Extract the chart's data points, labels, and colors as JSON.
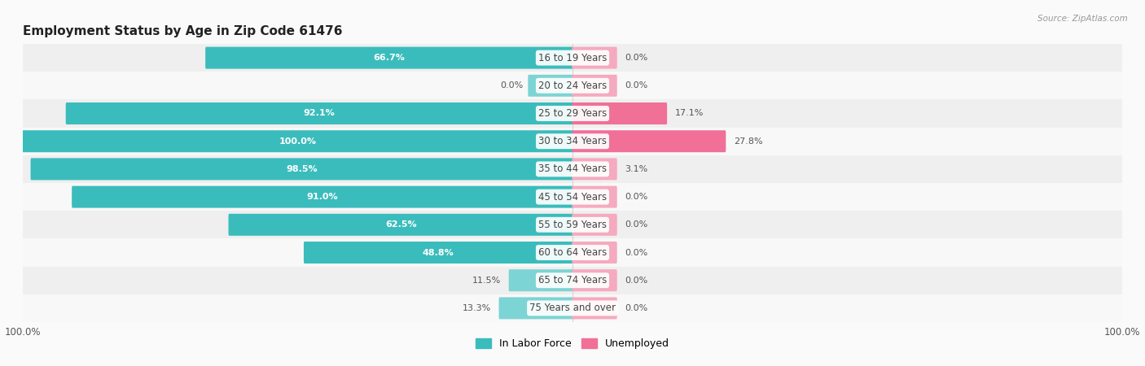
{
  "title": "Employment Status by Age in Zip Code 61476",
  "source": "Source: ZipAtlas.com",
  "categories": [
    "16 to 19 Years",
    "20 to 24 Years",
    "25 to 29 Years",
    "30 to 34 Years",
    "35 to 44 Years",
    "45 to 54 Years",
    "55 to 59 Years",
    "60 to 64 Years",
    "65 to 74 Years",
    "75 Years and over"
  ],
  "in_labor_force": [
    66.7,
    0.0,
    92.1,
    100.0,
    98.5,
    91.0,
    62.5,
    48.8,
    11.5,
    13.3
  ],
  "unemployed": [
    0.0,
    0.0,
    17.1,
    27.8,
    3.1,
    0.0,
    0.0,
    0.0,
    0.0,
    0.0
  ],
  "unemployed_stub": 8.0,
  "labor_color": "#3BBCBC",
  "labor_color_light": "#7DD4D4",
  "unemployed_color": "#F07098",
  "unemployed_color_light": "#F5AABF",
  "bar_height": 0.58,
  "row_colors": [
    "#EFEFEF",
    "#F8F8F8"
  ],
  "title_fontsize": 11,
  "label_fontsize": 8,
  "axis_max": 100.0,
  "center_label_color": "#444444",
  "white_text_color": "#FFFFFF",
  "dark_text_color": "#555555",
  "bg_color": "#FAFAFA"
}
